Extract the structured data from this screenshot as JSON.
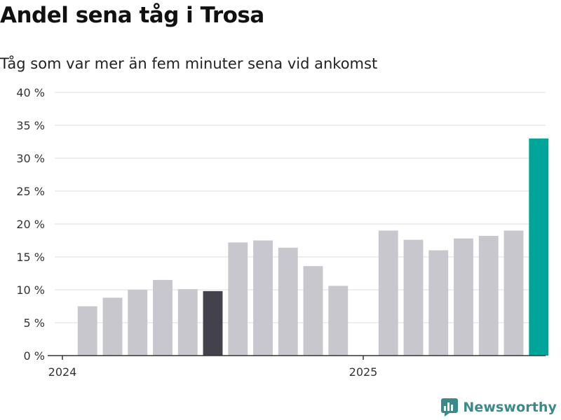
{
  "title": "Andel sena tåg i Trosa",
  "subtitle": "Tåg som var mer än fem minuter sena vid ankomst",
  "brand": "Newsworthy",
  "colors": {
    "bar_default": "#c8c7ce",
    "bar_highlight_dark": "#43424c",
    "bar_highlight_accent": "#00a599",
    "grid": "#dcdcdc",
    "axis": "#333333",
    "brand": "#3a8a8a"
  },
  "chart_data": {
    "type": "bar",
    "x_tick_labels": [
      "2024",
      "2025"
    ],
    "x": [
      "2024-01",
      "2024-02",
      "2024-03",
      "2024-04",
      "2024-05",
      "2024-06",
      "2024-07",
      "2024-08",
      "2024-09",
      "2024-10",
      "2024-11",
      "2025-01",
      "2025-02",
      "2025-03",
      "2025-04",
      "2025-05",
      "2025-06",
      "2025-07"
    ],
    "values": [
      7.5,
      8.8,
      10.0,
      11.5,
      10.1,
      9.8,
      17.2,
      17.5,
      16.4,
      13.6,
      10.6,
      19.0,
      17.6,
      16.0,
      17.8,
      18.2,
      19.0,
      33.0
    ],
    "highlight": {
      "2024-06": "dark",
      "2025-07": "accent"
    },
    "ylim": [
      0,
      40
    ],
    "yticks": [
      0,
      5,
      10,
      15,
      20,
      25,
      30,
      35,
      40
    ],
    "ytick_format": "{v} %",
    "grid": true,
    "legend": "none"
  }
}
